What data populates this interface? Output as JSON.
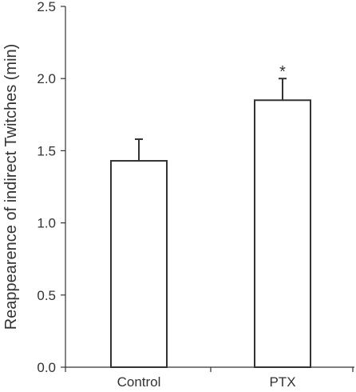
{
  "chart_data": {
    "type": "bar",
    "categories": [
      "Control",
      "PTX"
    ],
    "values": [
      1.43,
      1.85
    ],
    "errors": [
      0.15,
      0.15
    ],
    "annotations": [
      "",
      "*"
    ],
    "ylabel": "Reappearence of indirect Twitches (min)",
    "xlabel": "",
    "ylim": [
      0,
      2.5
    ],
    "yticks": [
      "0.0",
      "0.5",
      "1.0",
      "1.5",
      "2.0",
      "2.5"
    ],
    "grid": false,
    "bar_fill": "#ffffff",
    "bar_stroke": "#333333"
  }
}
